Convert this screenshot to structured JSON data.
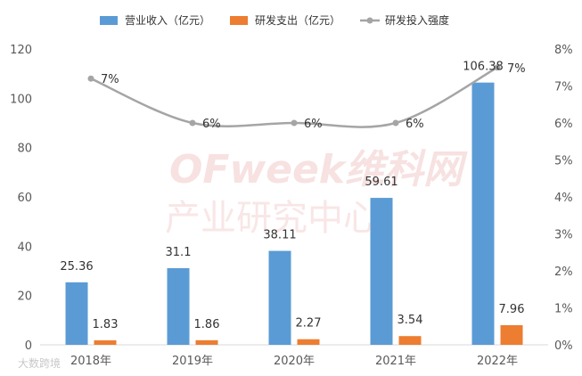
{
  "chart_data": {
    "type": "bar",
    "title": "",
    "categories": [
      "2018年",
      "2019年",
      "2020年",
      "2021年",
      "2022年"
    ],
    "series": [
      {
        "name": "营业收入（亿元）",
        "kind": "bar",
        "axis": "left",
        "color": "#5b9bd5",
        "values": [
          25.36,
          31.1,
          38.11,
          59.61,
          106.38
        ],
        "labels": [
          "25.36",
          "31.1",
          "38.11",
          "59.61",
          "106.38"
        ]
      },
      {
        "name": "研发支出（亿元）",
        "kind": "bar",
        "axis": "left",
        "color": "#ed7d31",
        "values": [
          1.83,
          1.86,
          2.27,
          3.54,
          7.96
        ],
        "labels": [
          "1.83",
          "1.86",
          "2.27",
          "3.54",
          "7.96"
        ]
      },
      {
        "name": "研发投入强度",
        "kind": "line",
        "axis": "right",
        "color": "#a5a5a5",
        "values": [
          0.072,
          0.06,
          0.06,
          0.06,
          0.075
        ],
        "labels": [
          "7%",
          "6%",
          "6%",
          "6%",
          "7%"
        ]
      }
    ],
    "y_left": {
      "min": 0,
      "max": 120,
      "ticks": [
        "0",
        "20",
        "40",
        "60",
        "80",
        "100",
        "120"
      ]
    },
    "y_right": {
      "min": 0,
      "max": 0.08,
      "ticks": [
        "0%",
        "1%",
        "2%",
        "3%",
        "4%",
        "5%",
        "6%",
        "7%",
        "8%"
      ]
    },
    "grid": false,
    "legend_position": "top"
  },
  "watermark": {
    "brand": "OFweek维科网",
    "subtitle": "产业研究中心",
    "source": "大数跨境"
  }
}
